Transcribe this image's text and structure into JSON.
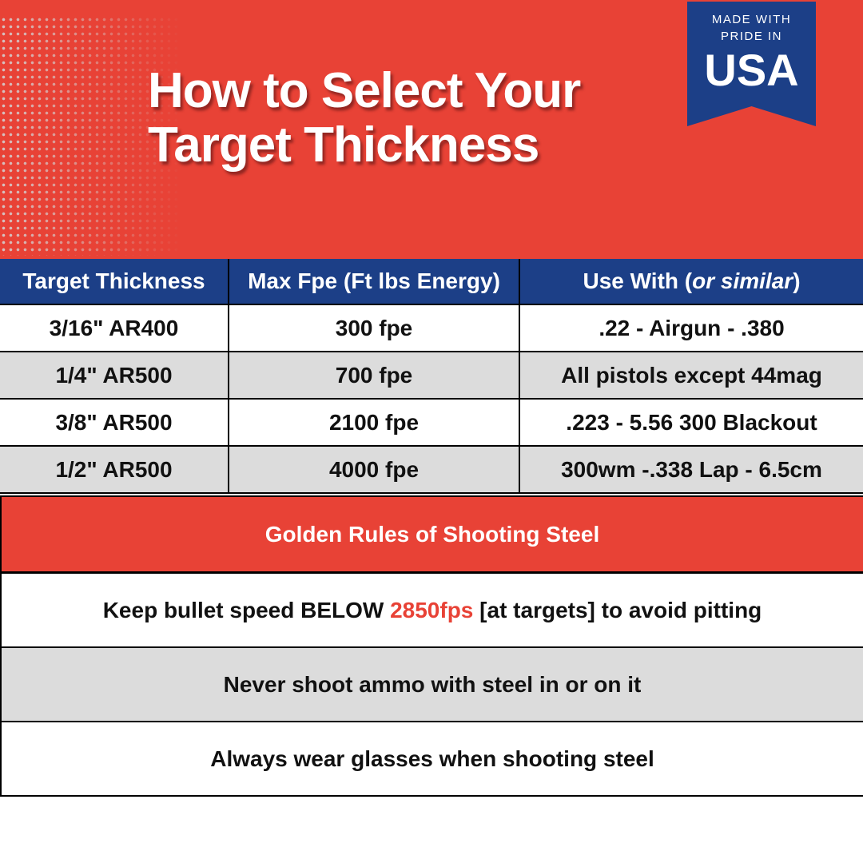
{
  "header": {
    "title_line1": "How to Select Your",
    "title_line2": "Target Thickness",
    "badge": {
      "line1": "MADE WITH",
      "line2": "PRIDE IN",
      "country": "USA"
    }
  },
  "colors": {
    "accent_red": "#e84236",
    "navy": "#1c3f87",
    "row_gray": "#dcdcdc"
  },
  "table": {
    "columns": [
      "Target Thickness",
      "Max Fpe (Ft lbs Energy)",
      "Use With (",
      "or similar",
      ")"
    ],
    "rows": [
      [
        "3/16\" AR400",
        "300 fpe",
        ".22 - Airgun - .380"
      ],
      [
        "1/4\" AR500",
        "700 fpe",
        "All pistols except 44mag"
      ],
      [
        "3/8\" AR500",
        "2100 fpe",
        ".223 - 5.56 300 Blackout"
      ],
      [
        "1/2\" AR500",
        "4000 fpe",
        "300wm -.338 Lap - 6.5cm"
      ]
    ]
  },
  "rules": {
    "title": "Golden Rules of Shooting Steel",
    "rule1": {
      "before": "Keep bullet speed BELOW ",
      "highlight": "2850fps",
      "after": " [at targets] to avoid pitting"
    },
    "rule2": "Never shoot ammo with steel in or on it",
    "rule3": "Always wear glasses when shooting steel"
  }
}
